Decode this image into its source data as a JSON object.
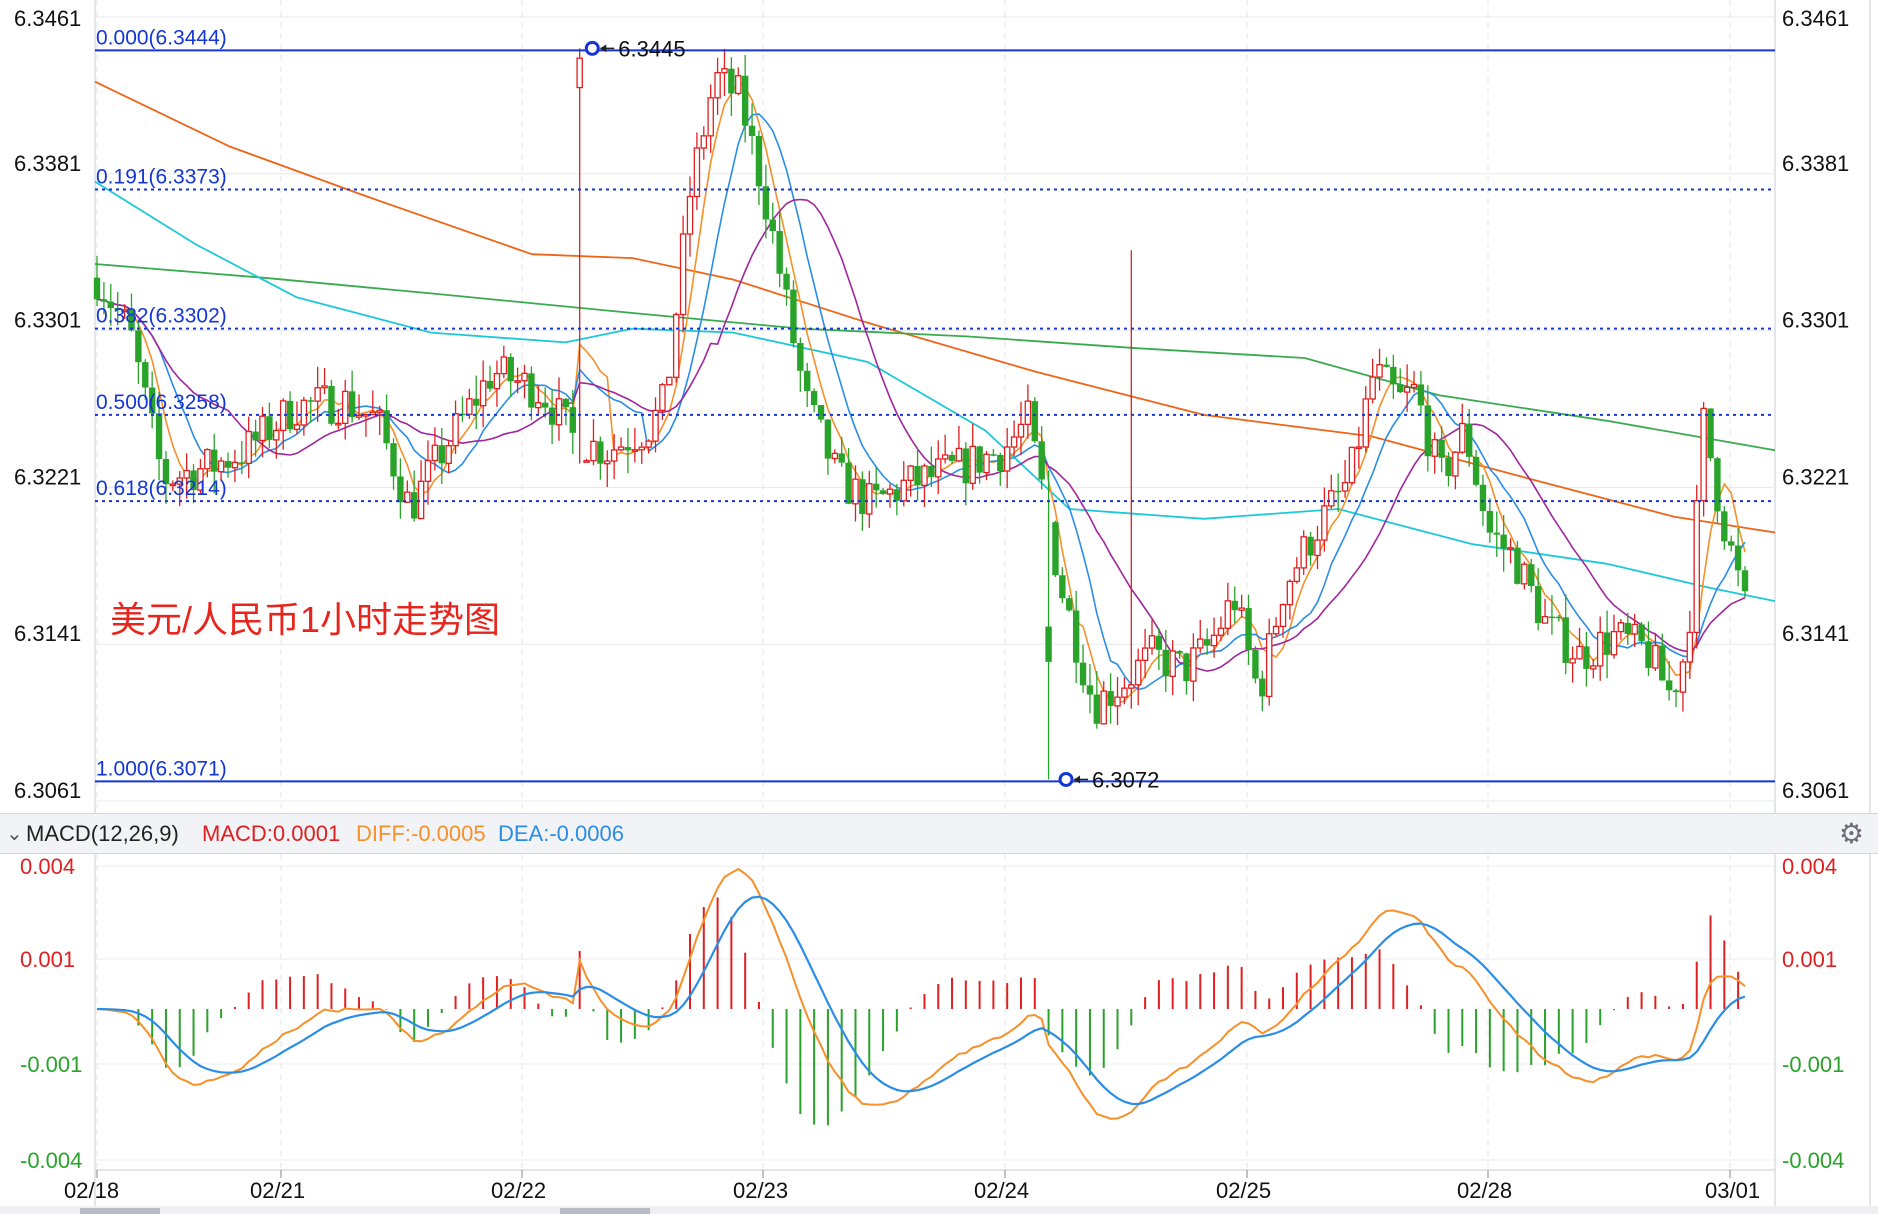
{
  "header": {
    "indicator": "MACD(12,26,9)",
    "macd": "MACD:0.0001",
    "diff": "DIFF:-0.0005",
    "dea": "DEA:-0.0006"
  },
  "chart_data": {
    "type": "candlestick",
    "title": "美元/人民币1小时走势图",
    "price_axis": {
      "ticks": [
        "6.3461",
        "6.3381",
        "6.3301",
        "6.3221",
        "6.3141",
        "6.3061"
      ],
      "range": [
        6.3061,
        6.3461
      ]
    },
    "x_axis": {
      "labels": [
        "02/18",
        "02/21",
        "02/22",
        "02/23",
        "02/24",
        "02/25",
        "02/28",
        "03/01"
      ]
    },
    "fibonacci": [
      {
        "label": "0.000(6.3444)",
        "price": 6.3444
      },
      {
        "label": "0.191(6.3373)",
        "price": 6.3373
      },
      {
        "label": "0.382(6.3302)",
        "price": 6.3302
      },
      {
        "label": "0.500(6.3258)",
        "price": 6.3258
      },
      {
        "label": "0.618(6.3214)",
        "price": 6.3214
      },
      {
        "label": "1.000(6.3071)",
        "price": 6.3071
      }
    ],
    "markers": [
      {
        "label": "6.3445",
        "price": 6.3445,
        "x_frac": 0.296
      },
      {
        "label": "6.3072",
        "price": 6.3072,
        "x_frac": 0.578
      }
    ],
    "colors": {
      "up": "#e02020",
      "down": "#29a329",
      "ma5": "#f5902a",
      "ma10": "#2a8de6",
      "ma20": "#a0269b",
      "ma60": "#1ec8d8",
      "ma120": "#f06418",
      "ma250": "#3aaa50",
      "fib": "#1536d6"
    },
    "ma_series": [
      {
        "color": "ma120",
        "points": [
          [
            0,
            6.3428
          ],
          [
            0.08,
            6.3395
          ],
          [
            0.16,
            6.337
          ],
          [
            0.26,
            6.334
          ],
          [
            0.32,
            6.3338
          ],
          [
            0.38,
            6.3327
          ],
          [
            0.46,
            6.3305
          ],
          [
            0.56,
            6.328
          ],
          [
            0.66,
            6.3258
          ],
          [
            0.76,
            6.3247
          ],
          [
            0.86,
            6.3224
          ],
          [
            0.94,
            6.3206
          ],
          [
            1,
            6.3198
          ]
        ]
      },
      {
        "color": "ma250",
        "points": [
          [
            0,
            6.3335
          ],
          [
            0.1,
            6.3328
          ],
          [
            0.2,
            6.332
          ],
          [
            0.32,
            6.331
          ],
          [
            0.42,
            6.3302
          ],
          [
            0.52,
            6.3298
          ],
          [
            0.62,
            6.3292
          ],
          [
            0.72,
            6.3287
          ],
          [
            0.8,
            6.3268
          ],
          [
            0.9,
            6.3255
          ],
          [
            1,
            6.324
          ]
        ]
      },
      {
        "color": "ma60",
        "points": [
          [
            0,
            6.3377
          ],
          [
            0.06,
            6.3345
          ],
          [
            0.12,
            6.3318
          ],
          [
            0.2,
            6.33
          ],
          [
            0.28,
            6.3295
          ],
          [
            0.32,
            6.3302
          ],
          [
            0.38,
            6.33
          ],
          [
            0.46,
            6.3285
          ],
          [
            0.53,
            6.325
          ],
          [
            0.58,
            6.321
          ],
          [
            0.66,
            6.3205
          ],
          [
            0.74,
            6.321
          ],
          [
            0.82,
            6.3192
          ],
          [
            0.9,
            6.3182
          ],
          [
            0.96,
            6.317
          ],
          [
            1,
            6.3163
          ]
        ]
      }
    ],
    "macd_panel": {
      "ticks": [
        "0.004",
        "0.001",
        "-0.001",
        "-0.004"
      ],
      "range": [
        -0.0045,
        0.0045
      ]
    }
  }
}
